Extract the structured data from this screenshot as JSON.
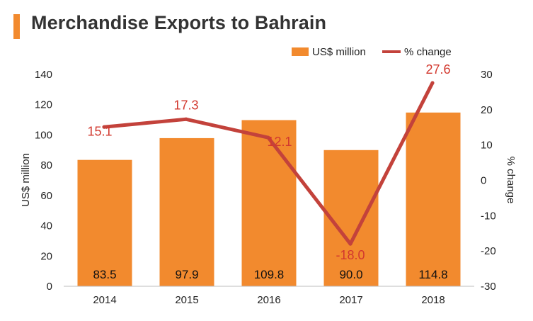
{
  "title": "Merchandise Exports to Bahrain",
  "colors": {
    "bar": "#f28a2e",
    "line": "#c3423b",
    "pct_label": "#d2382e",
    "title_bar": "#f28a2e"
  },
  "chart_data": {
    "type": "bar",
    "title": "Merchandise Exports to Bahrain",
    "categories": [
      "2014",
      "2015",
      "2016",
      "2017",
      "2018"
    ],
    "series": [
      {
        "name": "US$ million",
        "type": "bar",
        "axis": "left",
        "values": [
          83.5,
          97.9,
          109.8,
          90.0,
          114.8
        ],
        "labels": [
          "83.5",
          "97.9",
          "109.8",
          "90.0",
          "114.8"
        ]
      },
      {
        "name": "% change",
        "type": "line",
        "axis": "right",
        "values": [
          15.1,
          17.3,
          12.1,
          -18.0,
          27.6
        ],
        "labels": [
          "15.1",
          "17.3",
          "12.1",
          "-18.0",
          "27.6"
        ]
      }
    ],
    "ylabel": "US$ million",
    "y2label": "% change",
    "ylim": [
      0,
      140
    ],
    "y2lim": [
      -30,
      30
    ],
    "yticks": [
      "0",
      "20",
      "40",
      "60",
      "80",
      "100",
      "120",
      "140"
    ],
    "y2ticks": [
      "-30",
      "-20",
      "-10",
      "0",
      "10",
      "20",
      "30"
    ],
    "legend_position": "top-right",
    "grid": false
  }
}
